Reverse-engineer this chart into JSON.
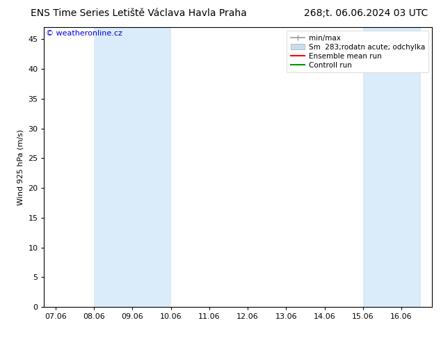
{
  "title_left": "ENS Time Series Letiště Václava Havla Praha",
  "title_right": "268;t. 06.06.2024 03 UTC",
  "ylabel": "Wind 925 hPa (m/s)",
  "watermark": "© weatheronline.cz",
  "watermark_color": "#0000dd",
  "background_color": "#ffffff",
  "plot_bg_color": "#ffffff",
  "shade_color": "#d4e8f8",
  "shade_alpha": 0.85,
  "band1_xmin": 1.0,
  "band1_xmax": 3.0,
  "band2_xmin": 8.0,
  "band2_xmax": 9.5,
  "x_tick_labels": [
    "07.06",
    "08.06",
    "09.06",
    "10.06",
    "11.06",
    "12.06",
    "13.06",
    "14.06",
    "15.06",
    "16.06"
  ],
  "x_tick_positions": [
    0,
    1,
    2,
    3,
    4,
    5,
    6,
    7,
    8,
    9
  ],
  "ylim": [
    0,
    47
  ],
  "yticks": [
    0,
    5,
    10,
    15,
    20,
    25,
    30,
    35,
    40,
    45
  ],
  "xlim": [
    -0.3,
    9.8
  ],
  "legend_line1": "min/max",
  "legend_line2": "Sm  283;rodatn acute; odchylka",
  "legend_line3": "Ensemble mean run",
  "legend_line4": "Controll run",
  "legend_color1": "#999999",
  "legend_color2": "#c8dded",
  "legend_color3": "#ff0000",
  "legend_color4": "#009900",
  "font_size_title": 10,
  "font_size_axis": 8,
  "font_size_ticks": 8,
  "font_size_legend": 7.5,
  "font_size_watermark": 8
}
